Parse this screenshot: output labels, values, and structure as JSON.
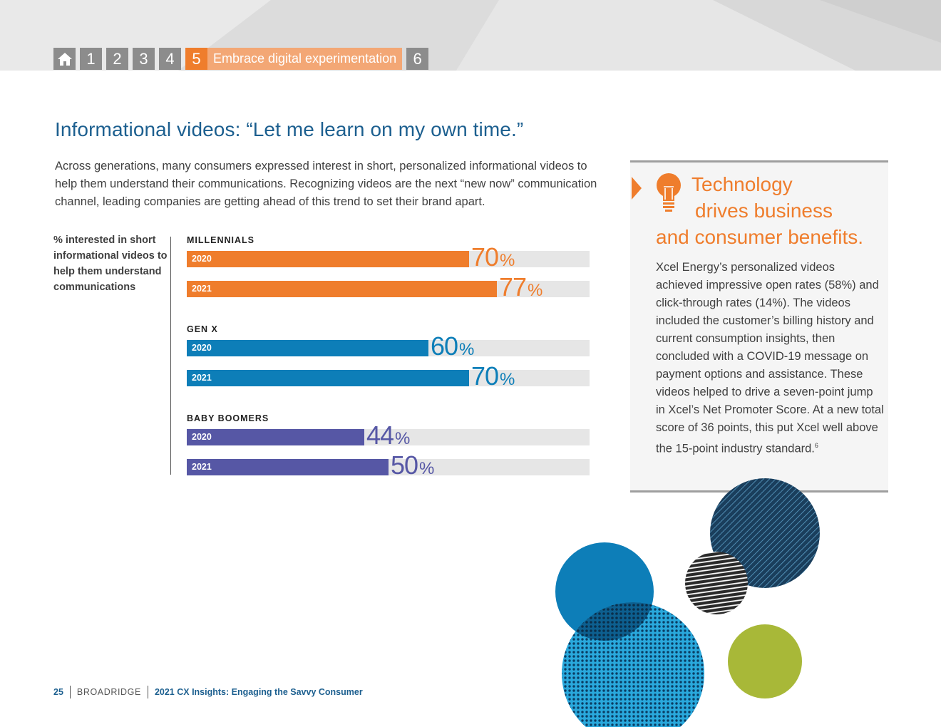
{
  "nav": {
    "items": [
      "1",
      "2",
      "3",
      "4"
    ],
    "active_number": "5",
    "active_label": "Embrace digital experimentation",
    "next": "6"
  },
  "heading": "Informational videos: “Let me learn on my own time.”",
  "intro": "Across generations, many consumers expressed interest in short, personalized informational videos to help them understand their communications. Recognizing videos are the next “new now” communication channel, leading companies are getting ahead of this trend to set their brand apart.",
  "chart_data": {
    "type": "bar",
    "orientation": "horizontal",
    "ylabel": "% interested in short informational videos to help them understand communications",
    "xlim": [
      0,
      100
    ],
    "unit": "%",
    "groups": [
      {
        "name": "MILLENNIALS",
        "color": "#ef7d2c",
        "bars": [
          {
            "year": "2020",
            "value": 70
          },
          {
            "year": "2021",
            "value": 77
          }
        ]
      },
      {
        "name": "GEN X",
        "color": "#0d7eb8",
        "bars": [
          {
            "year": "2020",
            "value": 60
          },
          {
            "year": "2021",
            "value": 70
          }
        ]
      },
      {
        "name": "BABY BOOMERS",
        "color": "#5657a5",
        "bars": [
          {
            "year": "2020",
            "value": 44
          },
          {
            "year": "2021",
            "value": 50
          }
        ]
      }
    ]
  },
  "sidebar": {
    "title_line1": "Technology",
    "title_line2": "drives business",
    "title_line3": "and consumer benefits.",
    "body": "Xcel Energy’s personalized videos achieved impressive open rates (58%) and click-through rates (14%). The videos included the customer’s billing history and current consumption insights, then concluded with a COVID-19 message on payment options and assistance. These videos helped to drive a seven-point jump in Xcel’s Net Promoter Score. At a new total score of 36 points, this put Xcel well above the 15-point industry standard.",
    "footnote": "6"
  },
  "footer": {
    "page": "25",
    "brand": "BROADRIDGE",
    "title": "2021 CX Insights: Engaging the Savvy Consumer"
  },
  "colors": {
    "orange": "#ef7d2c",
    "blue": "#0d7eb8",
    "purple": "#5657a5",
    "heading_blue": "#1c5f8f"
  }
}
